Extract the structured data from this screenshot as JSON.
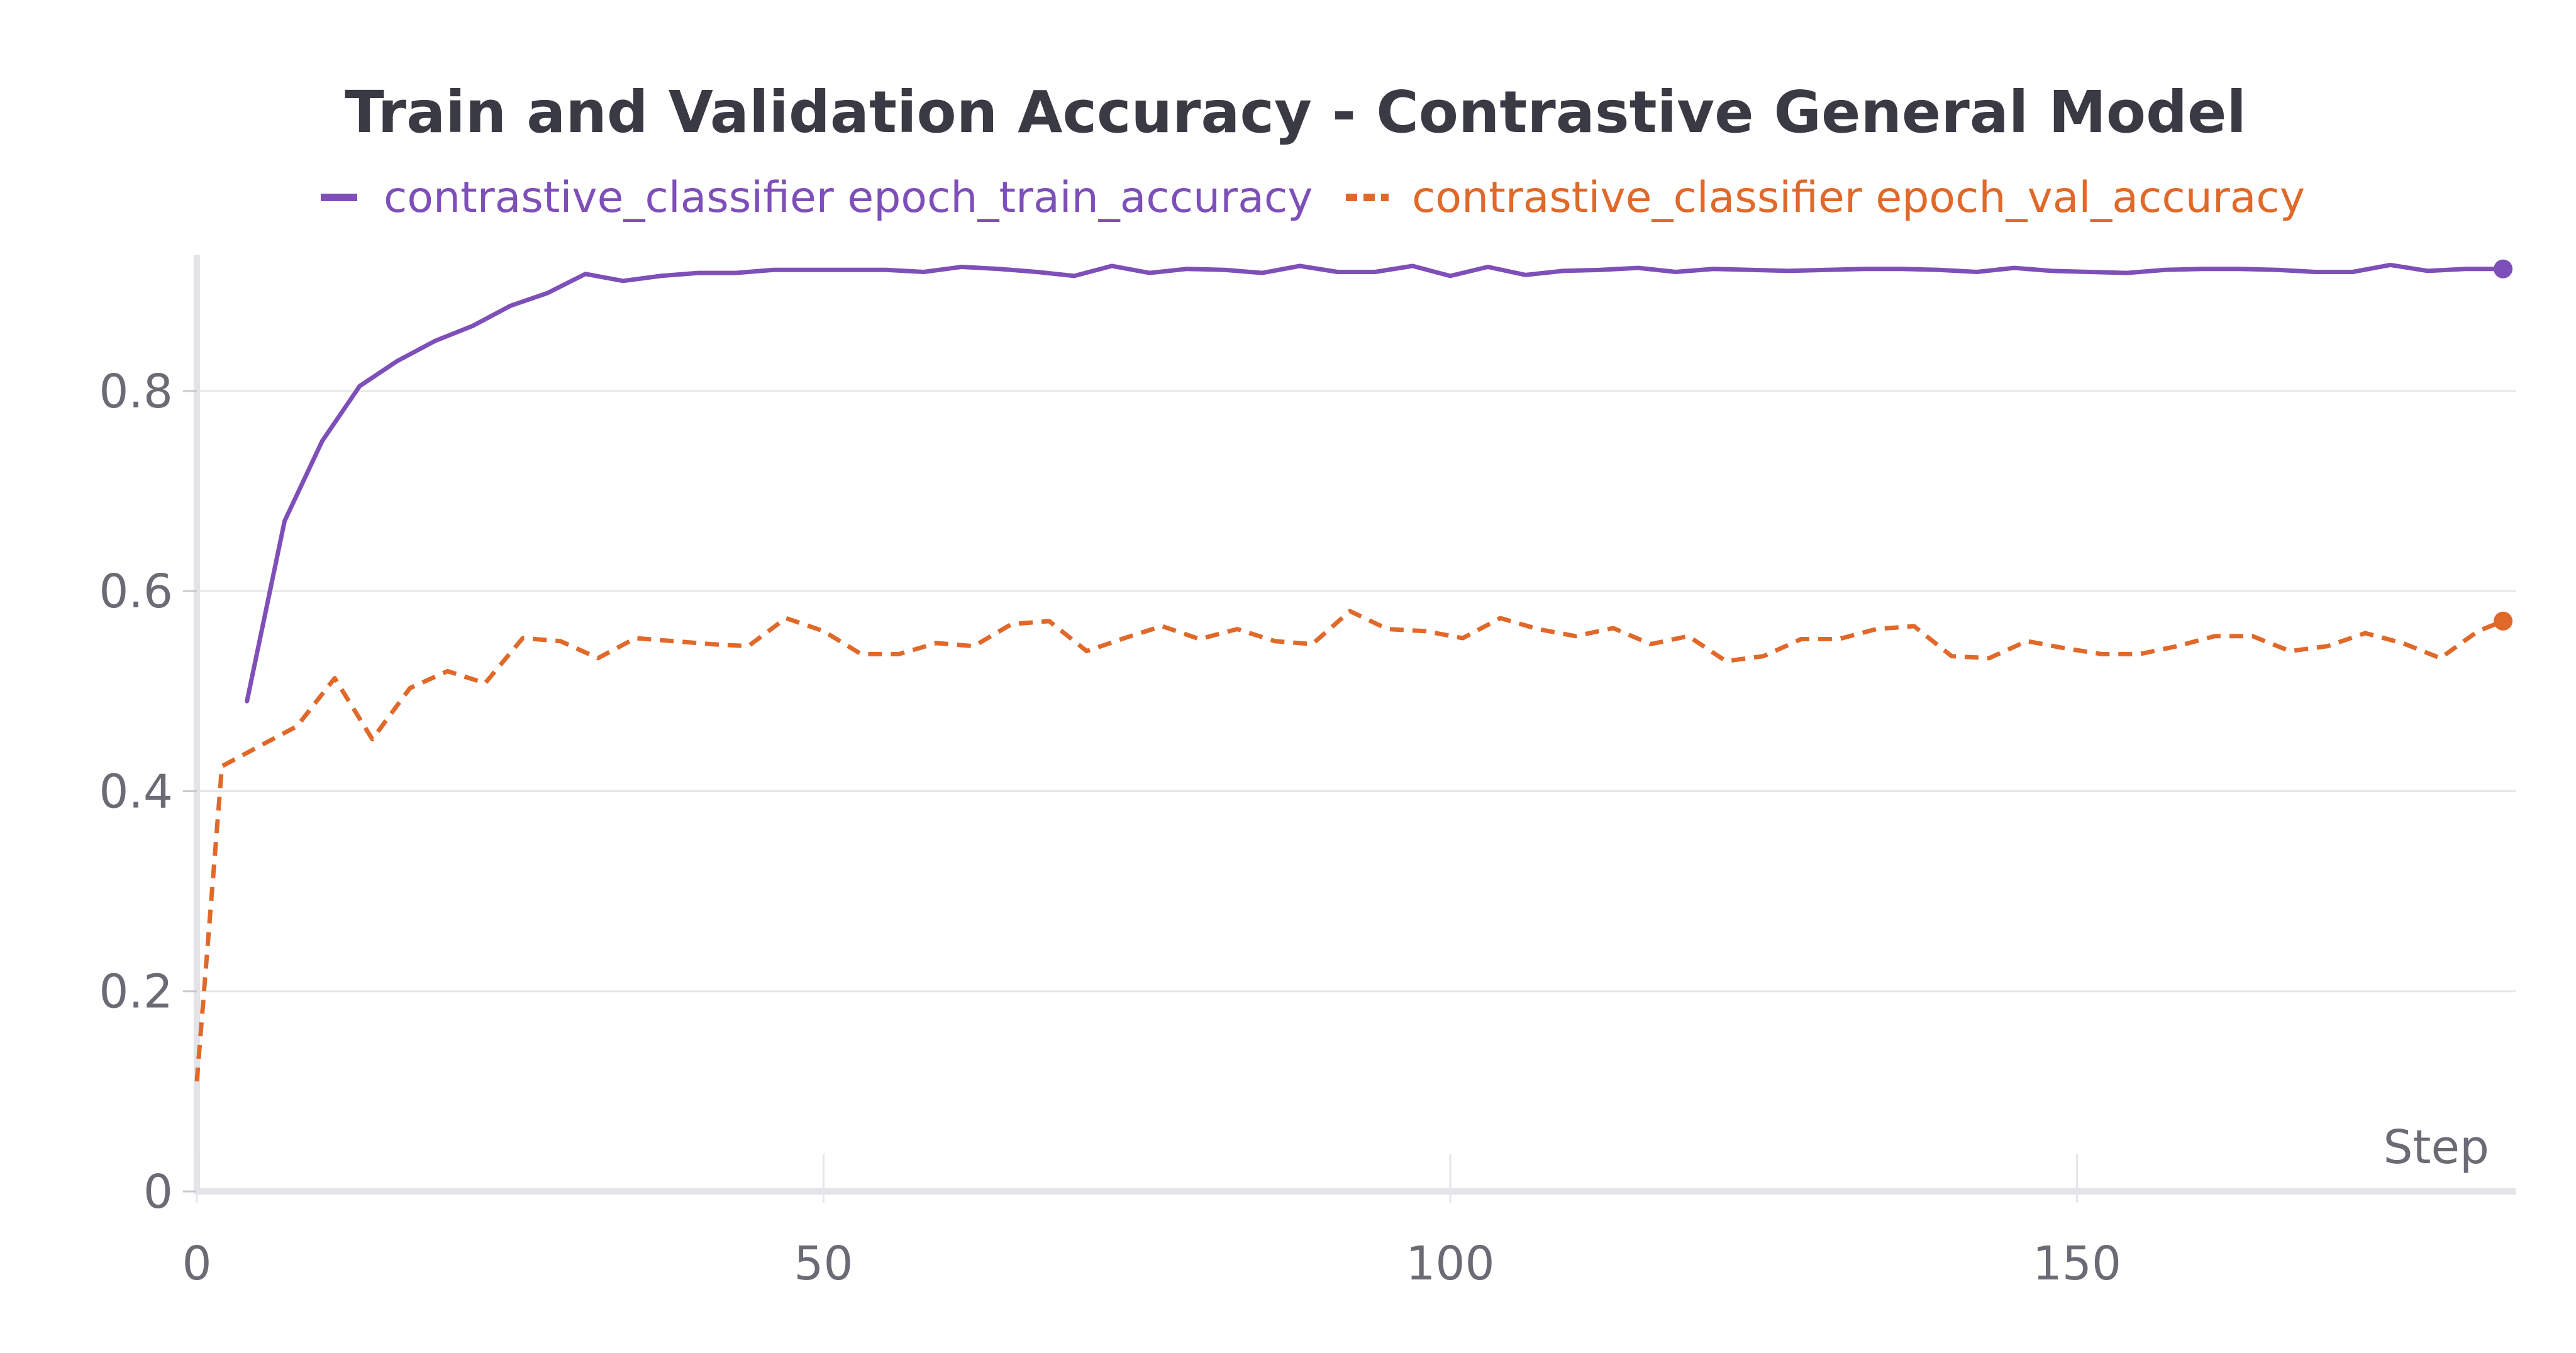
{
  "chart_data": {
    "type": "line",
    "title": "Train and Validation Accuracy - Contrastive General Model",
    "xlabel": "Step",
    "ylabel": "",
    "xlim": [
      0,
      185
    ],
    "ylim": [
      0,
      0.93
    ],
    "xticks": [
      0,
      50,
      100,
      150
    ],
    "yticks": [
      0,
      0.2,
      0.4,
      0.6,
      0.8
    ],
    "xtick_labels": [
      "0",
      "50",
      "100",
      "150"
    ],
    "ytick_labels": [
      "0",
      "0.2",
      "0.4",
      "0.6",
      "0.8"
    ],
    "grid": "horizontal",
    "legend_position": "top",
    "series": [
      {
        "name": "contrastive_classifier epoch_train_accuracy",
        "color": "#7e4fb8",
        "style": "solid",
        "x": [
          4,
          7,
          10,
          13,
          16,
          19,
          22,
          25,
          28,
          31,
          34,
          37,
          40,
          43,
          46,
          49,
          52,
          55,
          58,
          61,
          64,
          67,
          70,
          73,
          76,
          79,
          82,
          85,
          88,
          91,
          94,
          97,
          100,
          103,
          106,
          109,
          112,
          115,
          118,
          121,
          124,
          127,
          130,
          133,
          136,
          139,
          142,
          145,
          148,
          151,
          154,
          157,
          160,
          163,
          166,
          169,
          172,
          175,
          178,
          181,
          184
        ],
        "y": [
          0.49,
          0.67,
          0.75,
          0.805,
          0.83,
          0.85,
          0.865,
          0.885,
          0.898,
          0.917,
          0.91,
          0.915,
          0.918,
          0.918,
          0.921,
          0.921,
          0.921,
          0.921,
          0.919,
          0.924,
          0.922,
          0.919,
          0.915,
          0.925,
          0.918,
          0.922,
          0.921,
          0.918,
          0.925,
          0.919,
          0.919,
          0.925,
          0.915,
          0.924,
          0.916,
          0.92,
          0.921,
          0.923,
          0.919,
          0.922,
          0.921,
          0.92,
          0.921,
          0.922,
          0.922,
          0.921,
          0.919,
          0.923,
          0.92,
          0.919,
          0.918,
          0.921,
          0.922,
          0.922,
          0.921,
          0.919,
          0.919,
          0.926,
          0.92,
          0.922,
          0.922
        ]
      },
      {
        "name": "contrastive_classifier epoch_val_accuracy",
        "color": "#e0692a",
        "style": "dashed",
        "x": [
          0,
          2,
          5,
          8,
          11,
          14,
          17,
          20,
          23,
          26,
          29,
          32,
          35,
          38,
          41,
          44,
          47,
          50,
          53,
          56,
          59,
          62,
          65,
          68,
          71,
          74,
          77,
          80,
          83,
          86,
          89,
          92,
          95,
          98,
          101,
          104,
          107,
          110,
          113,
          116,
          119,
          122,
          125,
          128,
          131,
          134,
          137,
          140,
          143,
          146,
          149,
          152,
          155,
          158,
          161,
          164,
          167,
          170,
          173,
          176,
          179,
          182,
          184
        ],
        "y": [
          0.11,
          0.425,
          0.445,
          0.465,
          0.513,
          0.452,
          0.503,
          0.52,
          0.508,
          0.553,
          0.55,
          0.533,
          0.553,
          0.55,
          0.547,
          0.545,
          0.573,
          0.56,
          0.537,
          0.537,
          0.548,
          0.545,
          0.567,
          0.57,
          0.54,
          0.553,
          0.565,
          0.552,
          0.562,
          0.55,
          0.547,
          0.58,
          0.562,
          0.56,
          0.553,
          0.573,
          0.562,
          0.555,
          0.563,
          0.547,
          0.555,
          0.53,
          0.535,
          0.552,
          0.552,
          0.562,
          0.565,
          0.535,
          0.533,
          0.55,
          0.543,
          0.537,
          0.537,
          0.545,
          0.555,
          0.555,
          0.54,
          0.545,
          0.558,
          0.548,
          0.533,
          0.56,
          0.57
        ]
      }
    ]
  }
}
